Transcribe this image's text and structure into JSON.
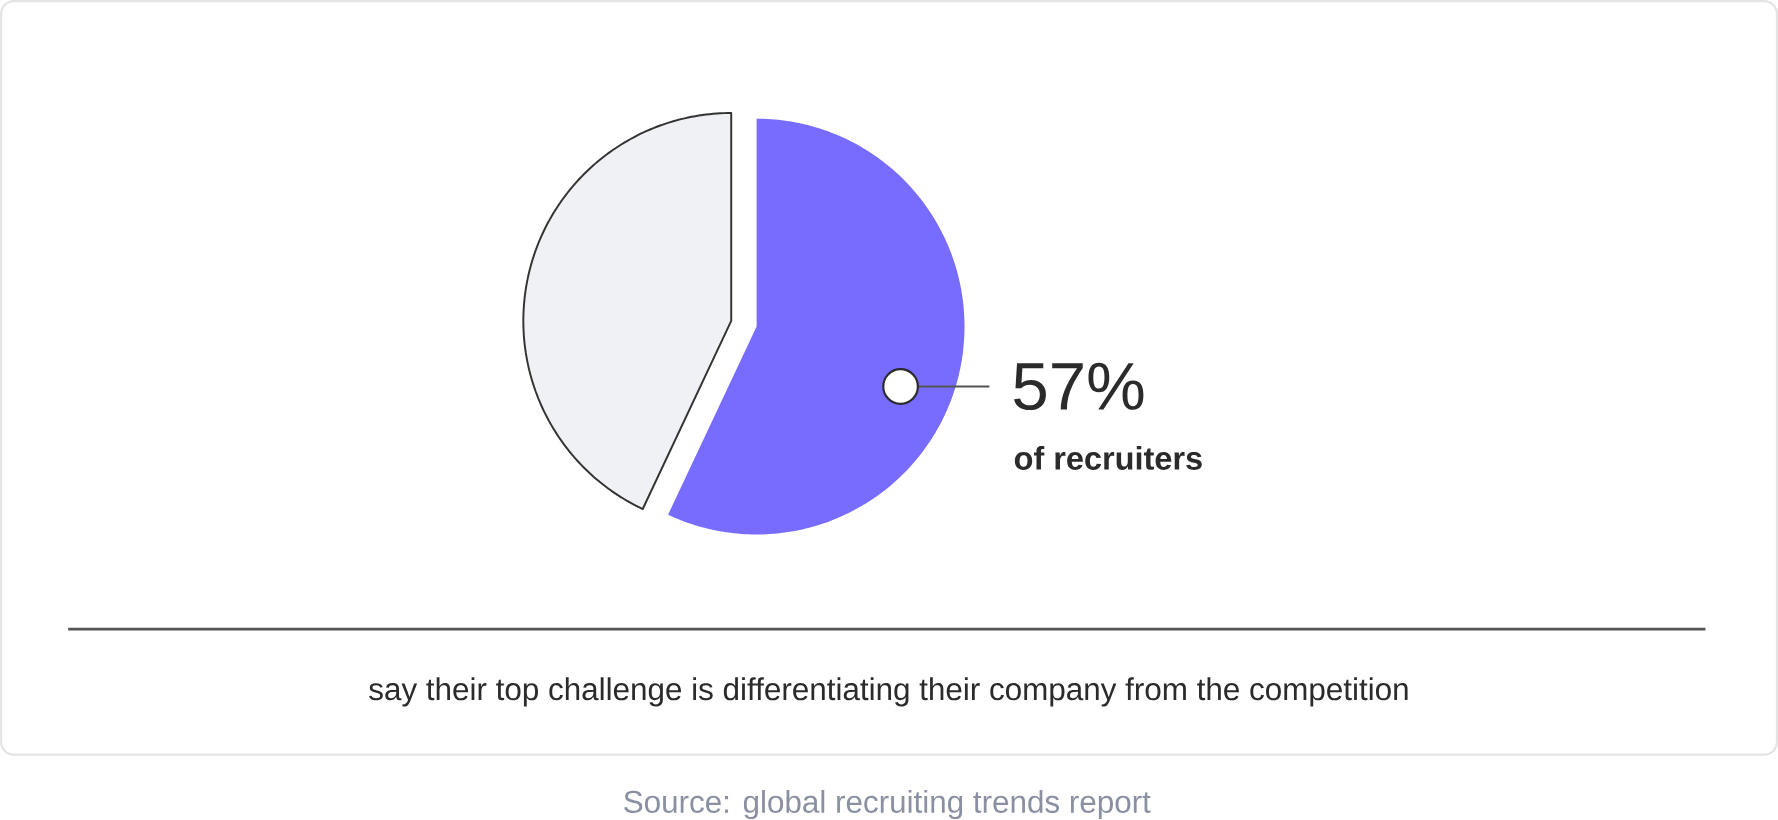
{
  "chart_data": {
    "type": "pie",
    "categories": [
      null,
      null
    ],
    "values": [
      57,
      43
    ],
    "colors": [
      "#786cff",
      "#f0f1f5"
    ],
    "value_labels": [
      "57%",
      null
    ],
    "annotations": [
      "of recruiters",
      "say their top challenge is differentiating their company from the competition",
      "Source: global recruiting trends report"
    ]
  }
}
